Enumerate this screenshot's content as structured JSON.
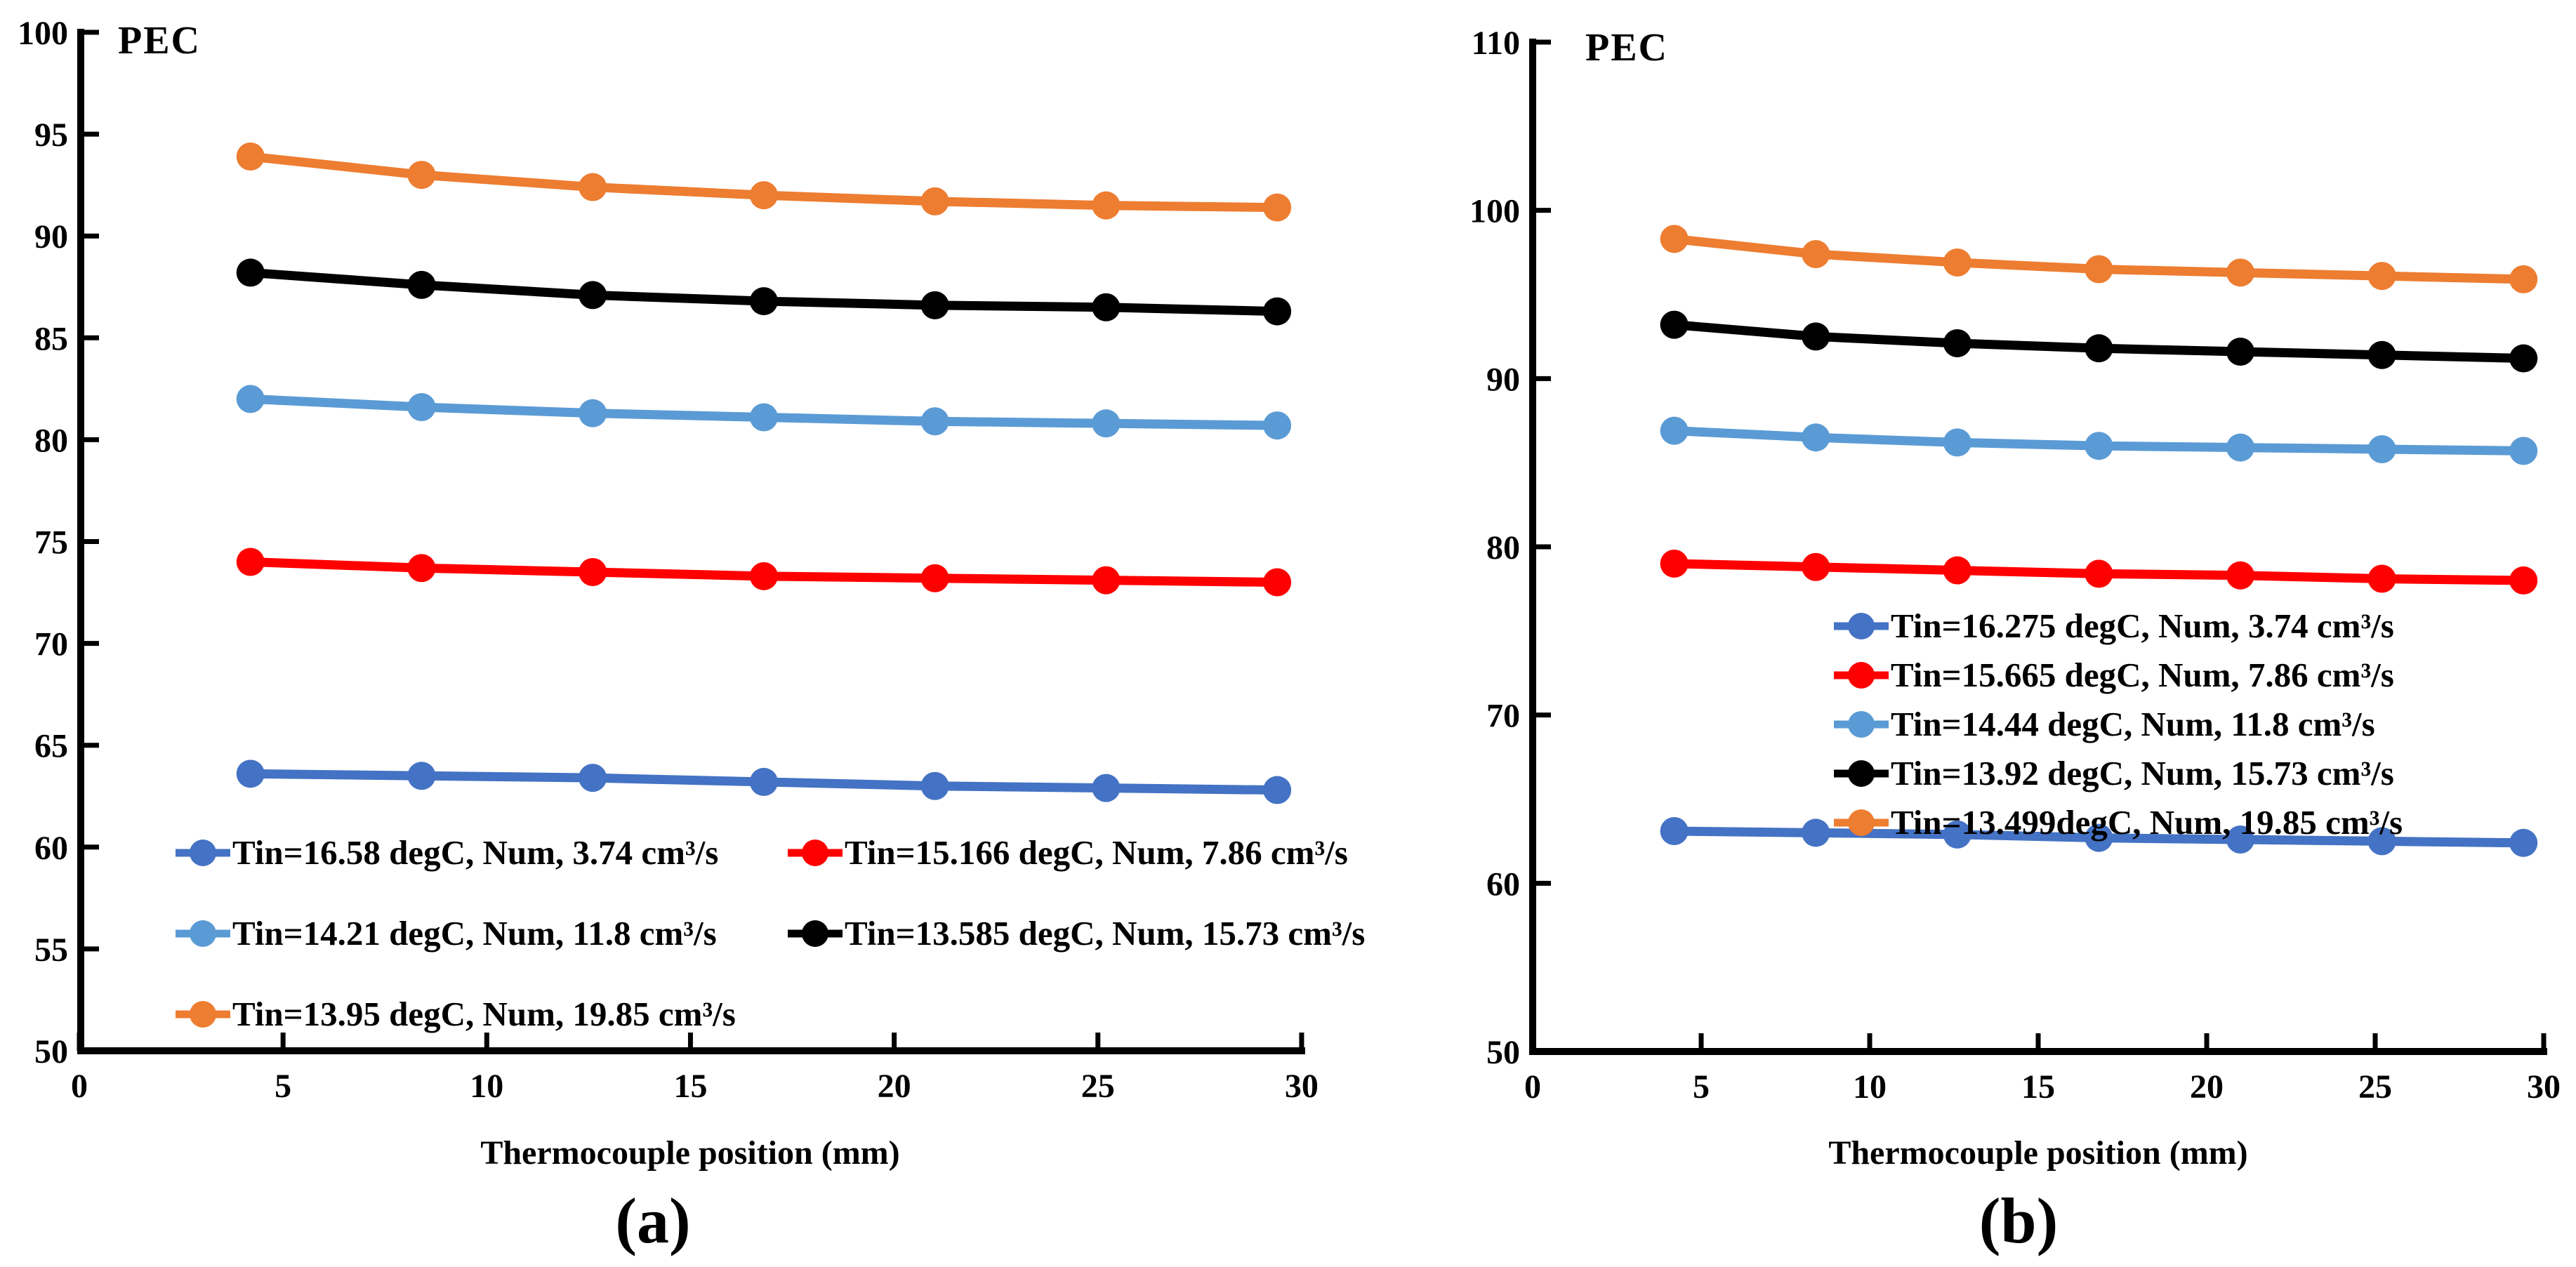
{
  "figure": {
    "captions": {
      "a": "(a)",
      "b": "(b)"
    }
  },
  "chart_data": [
    {
      "id": "a",
      "type": "line",
      "title": "PEC",
      "xlabel": "Thermocouple position (mm)",
      "ylabel": "PEC",
      "xlim": [
        0,
        30
      ],
      "ylim": [
        50,
        100
      ],
      "xticks": [
        0,
        5,
        10,
        15,
        20,
        25,
        30
      ],
      "yticks": [
        50,
        55,
        60,
        65,
        70,
        75,
        80,
        85,
        90,
        95,
        100
      ],
      "grid": false,
      "legend_position": "inside-bottom-left, 2 columns",
      "x": [
        4.2,
        8.4,
        12.6,
        16.8,
        21.0,
        25.2,
        29.4
      ],
      "series": [
        {
          "name": "Tin=16.58 degC, Num, 3.74 cm³/s",
          "color": "#4472C4",
          "values": [
            63.6,
            63.5,
            63.4,
            63.2,
            63.0,
            62.9,
            62.8
          ]
        },
        {
          "name": "Tin=15.166 degC, Num, 7.86 cm³/s",
          "color": "#FF0000",
          "values": [
            74.0,
            73.7,
            73.5,
            73.3,
            73.2,
            73.1,
            73.0
          ]
        },
        {
          "name": "Tin=14.21 degC, Num, 11.8 cm³/s",
          "color": "#5B9BD5",
          "values": [
            82.0,
            81.6,
            81.3,
            81.1,
            80.9,
            80.8,
            80.7
          ]
        },
        {
          "name": "Tin=13.585 degC, Num, 15.73 cm³/s",
          "color": "#000000",
          "values": [
            88.2,
            87.6,
            87.1,
            86.8,
            86.6,
            86.5,
            86.3
          ]
        },
        {
          "name": "Tin=13.95 degC, Num, 19.85 cm³/s",
          "color": "#ED7D31",
          "values": [
            93.9,
            93.0,
            92.4,
            92.0,
            91.7,
            91.5,
            91.4
          ]
        }
      ]
    },
    {
      "id": "b",
      "type": "line",
      "title": "PEC",
      "xlabel": "Thermocouple position (mm)",
      "ylabel": "PEC",
      "xlim": [
        0,
        30
      ],
      "ylim": [
        50,
        110
      ],
      "xticks": [
        0,
        5,
        10,
        15,
        20,
        25,
        30
      ],
      "yticks": [
        50,
        60,
        70,
        80,
        90,
        100,
        110
      ],
      "grid": false,
      "legend_position": "inside-middle, 1 column",
      "x": [
        4.2,
        8.4,
        12.6,
        16.8,
        21.0,
        25.2,
        29.4
      ],
      "series": [
        {
          "name": "Tin=16.275 degC, Num, 3.74 cm³/s",
          "color": "#4472C4",
          "values": [
            63.1,
            63.0,
            62.9,
            62.7,
            62.6,
            62.5,
            62.4
          ]
        },
        {
          "name": "Tin=15.665 degC, Num, 7.86 cm³/s",
          "color": "#FF0000",
          "values": [
            79.0,
            78.8,
            78.6,
            78.4,
            78.3,
            78.1,
            78.0
          ]
        },
        {
          "name": "Tin=14.44 degC, Num, 11.8 cm³/s",
          "color": "#5B9BD5",
          "values": [
            86.9,
            86.5,
            86.2,
            86.0,
            85.9,
            85.8,
            85.7
          ]
        },
        {
          "name": "Tin=13.92 degC, Num, 15.73 cm³/s",
          "color": "#000000",
          "values": [
            93.2,
            92.5,
            92.1,
            91.8,
            91.6,
            91.4,
            91.2
          ]
        },
        {
          "name": "Tin=13.499degC, Num, 19.85 cm³/s",
          "color": "#ED7D31",
          "values": [
            98.3,
            97.4,
            96.9,
            96.5,
            96.3,
            96.1,
            95.9
          ]
        }
      ]
    }
  ]
}
